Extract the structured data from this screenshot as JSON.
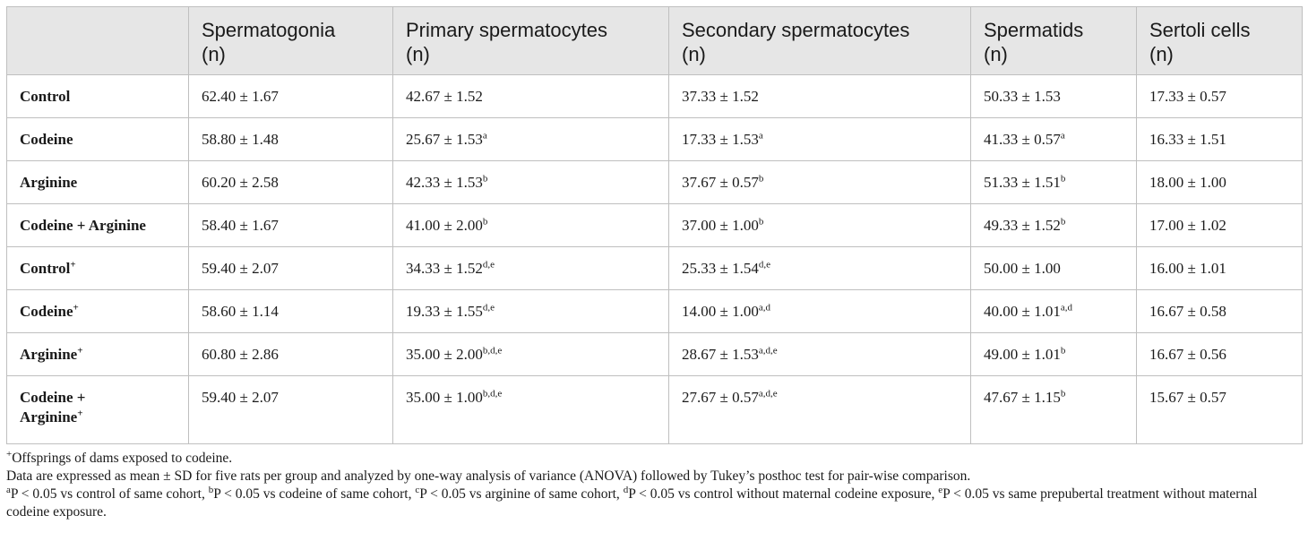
{
  "table": {
    "headers": [
      {
        "line1": "",
        "line2": ""
      },
      {
        "line1": "Spermatogonia",
        "line2": "(n)"
      },
      {
        "line1": "Primary spermatocytes",
        "line2": "(n)"
      },
      {
        "line1": "Secondary spermatocytes",
        "line2": "(n)"
      },
      {
        "line1": "Spermatids",
        "line2": "(n)"
      },
      {
        "line1": "Sertoli cells",
        "line2": "(n)"
      }
    ],
    "rows": [
      {
        "group": "Control",
        "group_sup": "",
        "cells": [
          {
            "v": "62.40 ± 1.67",
            "s": ""
          },
          {
            "v": "42.67 ± 1.52",
            "s": ""
          },
          {
            "v": "37.33 ± 1.52",
            "s": ""
          },
          {
            "v": "50.33 ± 1.53",
            "s": ""
          },
          {
            "v": "17.33 ± 0.57",
            "s": ""
          }
        ]
      },
      {
        "group": "Codeine",
        "group_sup": "",
        "cells": [
          {
            "v": "58.80 ± 1.48",
            "s": ""
          },
          {
            "v": "25.67 ± 1.53",
            "s": "a"
          },
          {
            "v": "17.33 ± 1.53",
            "s": "a"
          },
          {
            "v": "41.33 ± 0.57",
            "s": "a"
          },
          {
            "v": "16.33 ± 1.51",
            "s": ""
          }
        ]
      },
      {
        "group": "Arginine",
        "group_sup": "",
        "cells": [
          {
            "v": "60.20 ± 2.58",
            "s": ""
          },
          {
            "v": "42.33 ± 1.53",
            "s": "b"
          },
          {
            "v": "37.67 ± 0.57",
            "s": "b"
          },
          {
            "v": "51.33 ± 1.51",
            "s": "b"
          },
          {
            "v": "18.00 ± 1.00",
            "s": ""
          }
        ]
      },
      {
        "group": "Codeine + Arginine",
        "group_sup": "",
        "cells": [
          {
            "v": "58.40 ± 1.67",
            "s": ""
          },
          {
            "v": "41.00 ± 2.00",
            "s": "b"
          },
          {
            "v": "37.00 ± 1.00",
            "s": "b"
          },
          {
            "v": "49.33 ± 1.52",
            "s": "b"
          },
          {
            "v": "17.00 ± 1.02",
            "s": ""
          }
        ]
      },
      {
        "group": "Control",
        "group_sup": "+",
        "cells": [
          {
            "v": "59.40 ± 2.07",
            "s": ""
          },
          {
            "v": "34.33 ± 1.52",
            "s": "d,e"
          },
          {
            "v": "25.33 ± 1.54",
            "s": "d,e"
          },
          {
            "v": "50.00 ± 1.00",
            "s": ""
          },
          {
            "v": "16.00 ± 1.01",
            "s": ""
          }
        ]
      },
      {
        "group": "Codeine",
        "group_sup": "+",
        "cells": [
          {
            "v": "58.60 ± 1.14",
            "s": ""
          },
          {
            "v": "19.33 ± 1.55",
            "s": "d,e"
          },
          {
            "v": "14.00 ± 1.00",
            "s": "a,d"
          },
          {
            "v": "40.00 ± 1.01",
            "s": "a,d"
          },
          {
            "v": "16.67 ± 0.58",
            "s": ""
          }
        ]
      },
      {
        "group": "Arginine",
        "group_sup": "+",
        "cells": [
          {
            "v": "60.80 ± 2.86",
            "s": ""
          },
          {
            "v": "35.00 ± 2.00",
            "s": "b,d,e"
          },
          {
            "v": "28.67 ± 1.53",
            "s": "a,d,e"
          },
          {
            "v": "49.00 ± 1.01",
            "s": "b"
          },
          {
            "v": "16.67 ± 0.56",
            "s": ""
          }
        ]
      },
      {
        "group": "Codeine + Arginine",
        "group_line1": "Codeine +",
        "group_line2": "Arginine",
        "group_sup": "+",
        "cells": [
          {
            "v": "59.40 ± 2.07",
            "s": ""
          },
          {
            "v": "35.00 ± 1.00",
            "s": "b,d,e"
          },
          {
            "v": "27.67 ± 0.57",
            "s": "a,d,e"
          },
          {
            "v": "47.67 ± 1.15",
            "s": "b"
          },
          {
            "v": "15.67 ± 0.57",
            "s": ""
          }
        ]
      }
    ]
  },
  "footnotes": {
    "plus": {
      "sup": "+",
      "text": "Offsprings of dams exposed to codeine."
    },
    "data": "Data are expressed as mean ± SD for five rats per group and analyzed by one-way analysis of variance (ANOVA) followed by Tukey’s posthoc test for pair-wise comparison.",
    "sig": [
      {
        "sup": "a",
        "text": "P < 0.05 vs control of same cohort, "
      },
      {
        "sup": "b",
        "text": "P < 0.05 vs codeine of same cohort, "
      },
      {
        "sup": "c",
        "text": "P < 0.05 vs arginine of same cohort, "
      },
      {
        "sup": "d",
        "text": "P < 0.05 vs control without maternal codeine exposure, "
      },
      {
        "sup": "e",
        "text": "P < 0.05 vs same prepubertal treatment without maternal codeine exposure."
      }
    ]
  }
}
